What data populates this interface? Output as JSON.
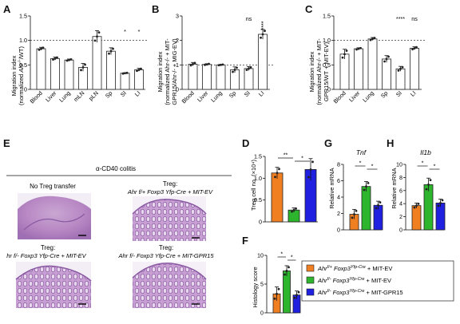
{
  "panels": {
    "A": {
      "label": "A"
    },
    "B": {
      "label": "B"
    },
    "C": {
      "label": "C"
    },
    "D": {
      "label": "D"
    },
    "E": {
      "label": "E"
    },
    "F": {
      "label": "F"
    },
    "G": {
      "label": "G"
    },
    "H": {
      "label": "H"
    }
  },
  "colors": {
    "orange": "#f07f22",
    "green": "#2db52d",
    "blue": "#2020e0",
    "white": "#ffffff"
  },
  "chart_data": [
    {
      "id": "A",
      "type": "bar",
      "ylabel_1": "Migration index",
      "ylabel_2_pre": "(normalized ",
      "ylabel_2_ital": "Ahr",
      "ylabel_2_sup": "-/-",
      "ylabel_2_post": "/WT)",
      "ylim": [
        0,
        1.5
      ],
      "yticks": [
        "0",
        "0.5",
        "1.0",
        "1.5"
      ],
      "ytick_vals": [
        0,
        0.5,
        1.0,
        1.5
      ],
      "reference_line": 1.0,
      "categories": [
        "Blood",
        "Liver",
        "Lung",
        "mLN",
        "pLN",
        "Sp",
        "SI",
        "LI"
      ],
      "values": [
        0.83,
        0.63,
        0.6,
        0.45,
        1.08,
        0.78,
        0.33,
        0.4
      ],
      "errors": [
        0.03,
        0.03,
        0.02,
        0.08,
        0.12,
        0.07,
        0.01,
        0.03
      ],
      "significance": [
        "",
        "",
        "",
        "",
        "",
        "",
        "*",
        "*"
      ]
    },
    {
      "id": "B",
      "type": "bar",
      "ylabel_1": "Migration index",
      "ylabel_2": "(normalized Ahr-/- + MIT-",
      "ylabel_3": "GPR15/Ahr-/- + MIG-EV)",
      "ylim": [
        0,
        3
      ],
      "yticks": [
        "0",
        "1",
        "2",
        "3"
      ],
      "ytick_vals": [
        0,
        1,
        2,
        3
      ],
      "reference_line": 1.0,
      "categories": [
        "Blood",
        "Liver",
        "Lung",
        "Sp",
        "SI",
        "LI"
      ],
      "values": [
        1.03,
        1.02,
        1.0,
        0.8,
        0.85,
        2.25
      ],
      "errors": [
        0.07,
        0.03,
        0.02,
        0.12,
        0.08,
        0.2
      ],
      "significance": [
        "",
        "",
        "",
        "",
        "ns",
        "****"
      ]
    },
    {
      "id": "C",
      "type": "bar",
      "ylabel_1": "Migration index",
      "ylabel_2": "(normalized Ahr-/- + MIT-",
      "ylabel_3": "GPR15/WT + MIT-EV)",
      "ylim": [
        0,
        1.5
      ],
      "yticks": [
        "0",
        "0.5",
        "1.0",
        "1.5"
      ],
      "ytick_vals": [
        0,
        0.5,
        1.0,
        1.5
      ],
      "reference_line": 1.0,
      "categories": [
        "Blood",
        "Liver",
        "Lung",
        "Sp",
        "SI",
        "LI"
      ],
      "values": [
        0.72,
        0.83,
        1.03,
        0.62,
        0.42,
        0.84
      ],
      "errors": [
        0.1,
        0.02,
        0.03,
        0.07,
        0.05,
        0.03
      ],
      "significance": [
        "",
        "",
        "",
        "",
        "****",
        "ns"
      ]
    },
    {
      "id": "D",
      "type": "bar",
      "ylabel": "Treg cell no. (×10⁴)",
      "ylim": [
        0,
        1.5
      ],
      "yticks": [
        "0",
        "0.5",
        "1.0",
        "1.5"
      ],
      "ytick_vals": [
        0,
        0.5,
        1.0,
        1.5
      ],
      "groups": [
        "Ahr f/+ Foxp3 Yfp-Cre + MIT-EV",
        "Ahr f/- Foxp3 Yfp-Cre + MIT-EV",
        "Ahr f/- Foxp3 Yfp-Cre + MIT-GPR15"
      ],
      "values": [
        1.12,
        0.27,
        1.2
      ],
      "errors": [
        0.13,
        0.05,
        0.25
      ],
      "comparisons": [
        "**",
        "*"
      ]
    },
    {
      "id": "G",
      "type": "bar",
      "title": "Tnf",
      "ylabel": "Relative mRNA",
      "ylim": [
        0,
        8
      ],
      "yticks": [
        "0",
        "2",
        "4",
        "6",
        "8"
      ],
      "ytick_vals": [
        0,
        2,
        4,
        6,
        8
      ],
      "values": [
        1.9,
        5.3,
        3.0
      ],
      "errors": [
        0.6,
        0.6,
        0.5
      ],
      "comparisons": [
        "*",
        "*"
      ]
    },
    {
      "id": "H",
      "type": "bar",
      "title": "Il1b",
      "ylabel": "Relative mRNA",
      "ylim": [
        0,
        10
      ],
      "yticks": [
        "0",
        "2",
        "4",
        "6",
        "8",
        "10"
      ],
      "ytick_vals": [
        0,
        2,
        4,
        6,
        8,
        10
      ],
      "values": [
        3.7,
        6.9,
        4.1
      ],
      "errors": [
        0.4,
        1.0,
        0.6
      ],
      "comparisons": [
        "*",
        "*"
      ]
    },
    {
      "id": "F",
      "type": "bar",
      "ylabel": "Histology score",
      "ylim": [
        0,
        10
      ],
      "yticks": [
        "0",
        "5",
        "10"
      ],
      "ytick_vals": [
        0,
        5,
        10
      ],
      "values": [
        3.3,
        7.3,
        3.1
      ],
      "errors": [
        1.2,
        0.9,
        0.7
      ],
      "comparisons": [
        "*",
        "*"
      ]
    }
  ],
  "panel_e": {
    "header": "α-CD40 colitis",
    "img1_title": "No Treg transfer",
    "img2_title_l1": "Treg:",
    "img2_title_l2": "Ahr f/+ Foxp3 Yfp-Cre + MIT-EV",
    "img3_title_l1": "Treg:",
    "img3_title_l2": "hr f/- Foxp3 Yfp-Cre + MIT-EV",
    "img4_title_l1": "Treg:",
    "img4_title_l2": "Ahr f/- Foxp3 Yfp-Cre + MIT-GPR15"
  },
  "legend": {
    "items": [
      {
        "gene": "Ahr",
        "sup1": "f/+",
        "strain": "Foxp3",
        "sup2": "Yfp-Cre",
        "suffix": " + MIT-EV"
      },
      {
        "gene": "Ahr",
        "sup1": "f/-",
        "strain": "Foxp3",
        "sup2": "Yfp-Cre",
        "suffix": " + MIT-EV"
      },
      {
        "gene": "Ahr",
        "sup1": "f/-",
        "strain": "Foxp3",
        "sup2": "Yfp-Cre",
        "suffix": " + MIT-GPR15"
      }
    ]
  }
}
